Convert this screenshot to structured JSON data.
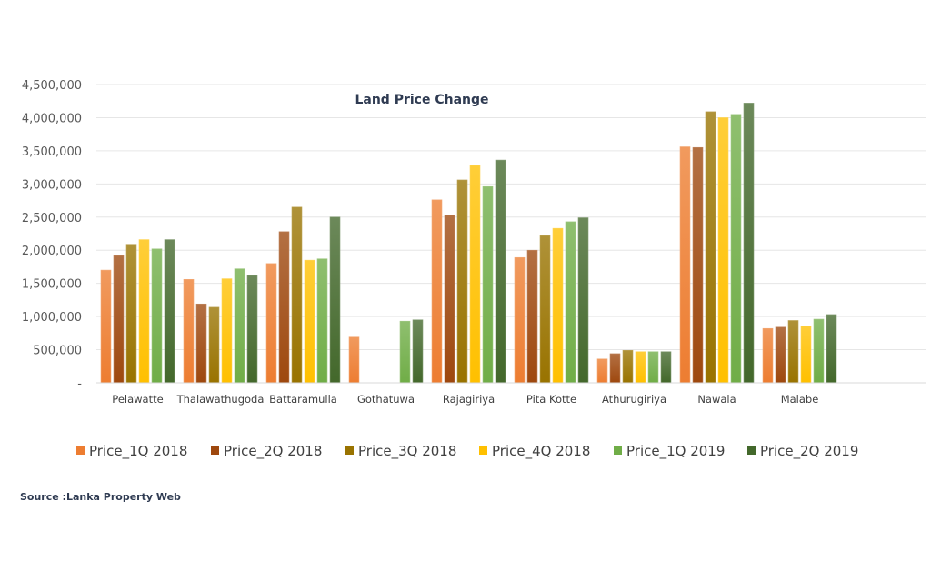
{
  "chart_data": {
    "type": "bar",
    "title": "Land Price Change",
    "xlabel": "",
    "ylabel": "",
    "ylim": [
      0,
      4500000
    ],
    "y_ticks": [
      0,
      500000,
      1000000,
      1500000,
      2000000,
      2500000,
      3000000,
      3500000,
      4000000,
      4500000
    ],
    "y_tick_labels": [
      "-",
      "500,000",
      "1,000,000",
      "1,500,000",
      "2,000,000",
      "2,500,000",
      "3,000,000",
      "3,500,000",
      "4,000,000",
      "4,500,000"
    ],
    "grid": true,
    "legend_position": "bottom",
    "categories": [
      "Pelawatte",
      "Thalawathugoda",
      "Battaramulla",
      "Gothatuwa",
      "Rajagiriya",
      "Pita Kotte",
      "Athurugiriya",
      "Nawala",
      "Malabe"
    ],
    "series": [
      {
        "name": "Price_1Q 2018",
        "color": "#ED7D31",
        "values": [
          1700000,
          1560000,
          1800000,
          690000,
          2760000,
          1890000,
          360000,
          3560000,
          820000
        ]
      },
      {
        "name": "Price_2Q 2018",
        "color": "#9E480E",
        "values": [
          1920000,
          1190000,
          2280000,
          null,
          2530000,
          2000000,
          440000,
          3550000,
          840000
        ]
      },
      {
        "name": "Price_3Q 2018",
        "color": "#997300",
        "values": [
          2090000,
          1140000,
          2650000,
          null,
          3060000,
          2220000,
          490000,
          4090000,
          940000
        ]
      },
      {
        "name": "Price_4Q 2018",
        "color": "#FFC000",
        "values": [
          2160000,
          1570000,
          1850000,
          null,
          3280000,
          2330000,
          470000,
          4000000,
          860000
        ]
      },
      {
        "name": "Price_1Q 2019",
        "color": "#70AD47",
        "values": [
          2020000,
          1720000,
          1870000,
          930000,
          2960000,
          2430000,
          470000,
          4050000,
          960000
        ]
      },
      {
        "name": "Price_2Q 2019",
        "color": "#43682B",
        "values": [
          2160000,
          1620000,
          2500000,
          950000,
          3360000,
          2490000,
          470000,
          4220000,
          1030000
        ]
      }
    ]
  },
  "source_note": "Source :Lanka Property Web"
}
